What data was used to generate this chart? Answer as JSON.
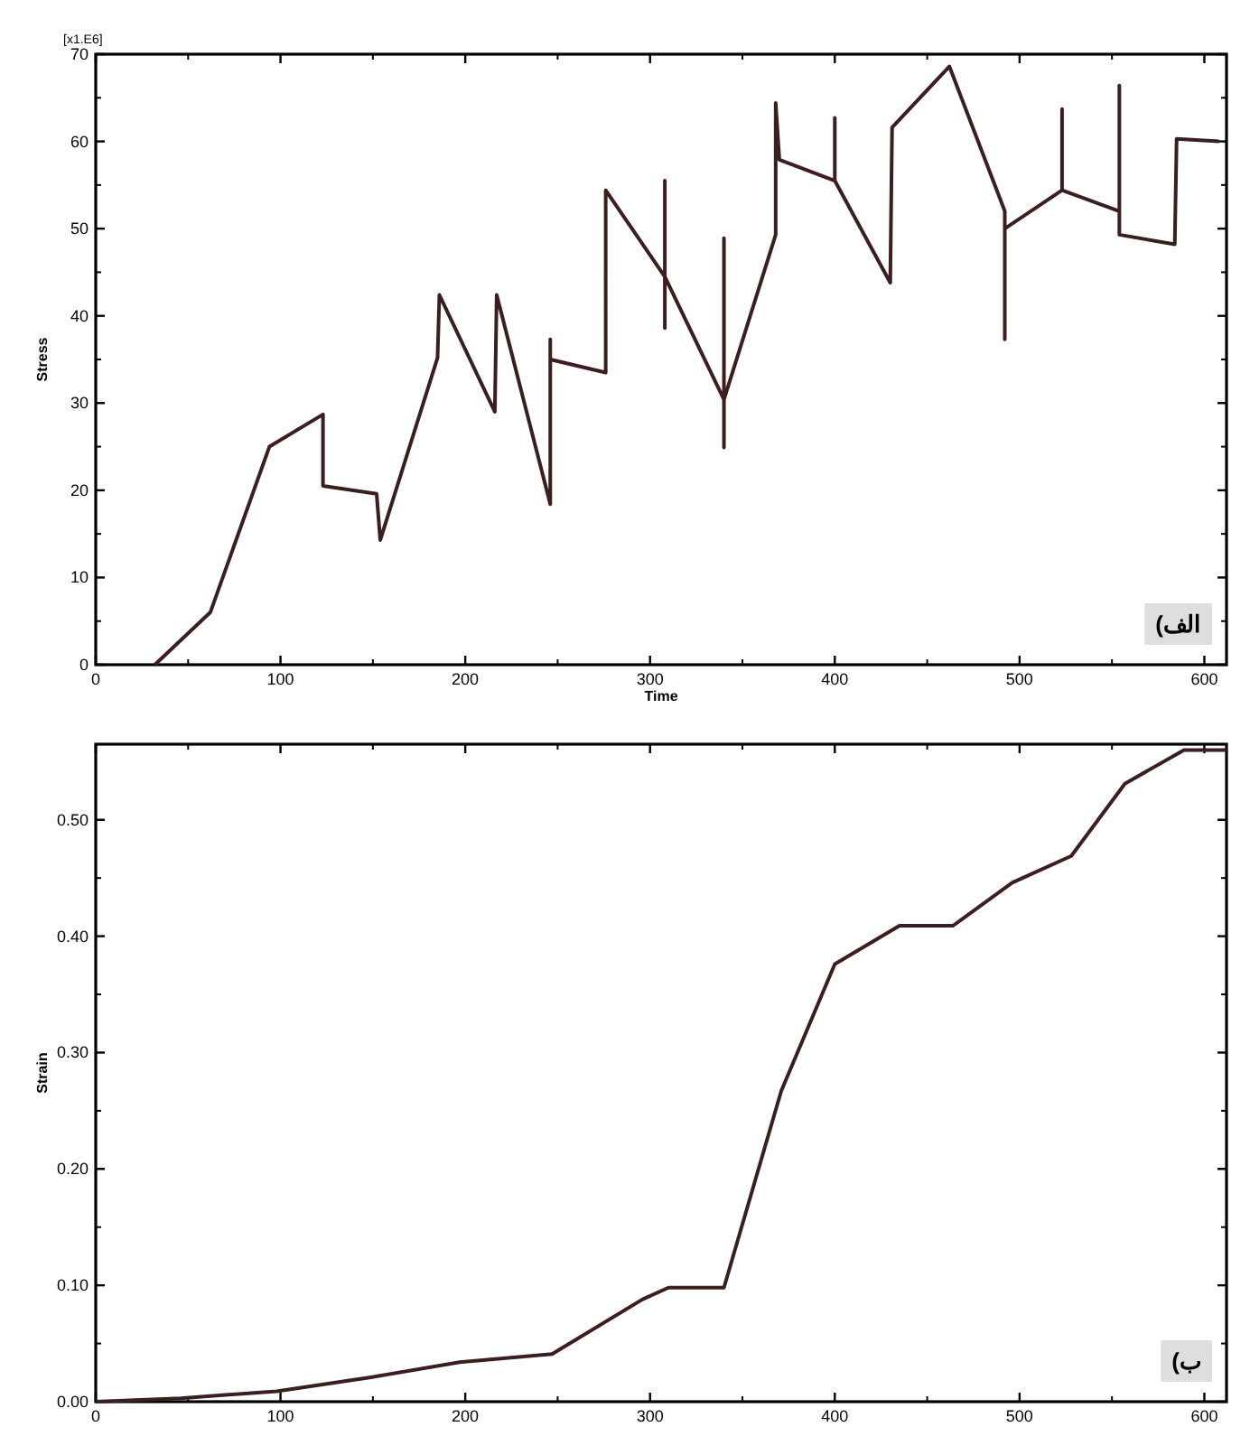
{
  "chart_data": [
    {
      "type": "line",
      "xlabel": "Time",
      "ylabel": "Stress",
      "xlim": [
        0,
        612
      ],
      "ylim": [
        0,
        70
      ],
      "xticks": [
        0,
        100,
        200,
        300,
        400,
        500,
        600
      ],
      "yticks": [
        0,
        10,
        20,
        30,
        40,
        50,
        60,
        70
      ],
      "x": [
        32,
        62,
        94,
        123,
        123,
        152,
        154,
        185,
        186,
        216,
        217,
        246,
        246,
        246,
        276,
        276,
        308,
        308,
        308,
        308,
        340,
        340,
        340,
        340,
        368,
        368,
        370,
        400,
        400,
        400,
        430,
        431,
        462,
        492,
        492,
        492,
        523,
        523,
        523,
        554,
        554,
        554,
        584,
        585,
        608
      ],
      "series": [
        {
          "color": "#3b1f1f",
          "values": [
            0,
            6,
            25,
            28.7,
            20.5,
            19.6,
            14.3,
            35.2,
            42.4,
            29,
            42.4,
            18.4,
            37.3,
            35,
            33.5,
            54.4,
            44.5,
            55.5,
            38.6,
            44.5,
            30.4,
            48.9,
            24.9,
            30.4,
            49.3,
            64.4,
            57.9,
            55.5,
            62.7,
            55.5,
            43.8,
            61.6,
            68.6,
            52,
            37.3,
            50,
            54.4,
            63.7,
            54.4,
            52,
            66.4,
            49.3,
            48.2,
            60.3,
            60
          ]
        }
      ],
      "annotations": [
        "[x1.E6]",
        "الف)"
      ]
    },
    {
      "type": "line",
      "ylabel": "Strain",
      "xlim": [
        0,
        612
      ],
      "ylim": [
        0,
        0.565
      ],
      "xticks": [
        0,
        100,
        200,
        300,
        400,
        500,
        600
      ],
      "yticks": [
        {
          "value": 0,
          "label": "0.00"
        },
        {
          "value": 0.1,
          "label": "0.10"
        },
        {
          "value": 0.2,
          "label": "0.20"
        },
        {
          "value": 0.3,
          "label": "0.30"
        },
        {
          "value": 0.4,
          "label": "0.40"
        },
        {
          "value": 0.5,
          "label": "0.50"
        }
      ],
      "x": [
        0,
        46,
        98,
        149,
        197,
        247,
        296,
        310,
        340,
        371,
        400,
        435,
        464,
        496,
        528,
        557,
        589,
        612
      ],
      "series": [
        {
          "color": "#3b1f1f",
          "values": [
            0,
            0.003,
            0.009,
            0.021,
            0.034,
            0.041,
            0.088,
            0.098,
            0.098,
            0.267,
            0.376,
            0.409,
            0.409,
            0.446,
            0.469,
            0.531,
            0.56,
            0.56
          ]
        }
      ],
      "annotations": [
        "ب)"
      ]
    }
  ]
}
